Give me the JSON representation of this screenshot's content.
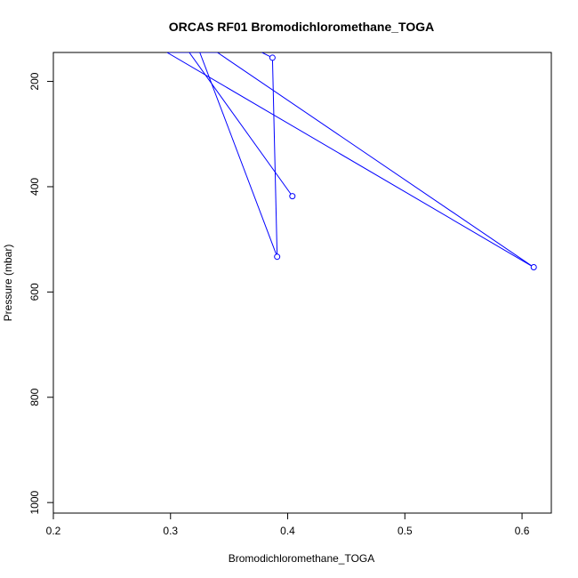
{
  "chart_data": {
    "type": "line",
    "title": "ORCAS RF01 Bromodichloromethane_TOGA",
    "xlabel": "Bromodichloromethane_TOGA",
    "ylabel": "Pressure (mbar)",
    "xlim": [
      0.2,
      0.625
    ],
    "ylim": [
      1020,
      145
    ],
    "y_reversed": true,
    "grid": false,
    "legend": "none",
    "xticks": [
      0.2,
      0.3,
      0.4,
      0.5,
      0.6
    ],
    "xtick_labels": [
      "0.2",
      "0.3",
      "0.4",
      "0.5",
      "0.6"
    ],
    "yticks": [
      200,
      400,
      600,
      800,
      1000
    ],
    "ytick_labels": [
      "200",
      "400",
      "600",
      "800",
      "1000"
    ],
    "series": [
      {
        "color": "#0000ff",
        "marker": "open-circle",
        "points": [
          {
            "x": 0.378,
            "y": 145,
            "marker": false
          },
          {
            "x": 0.387,
            "y": 155,
            "marker": true
          },
          {
            "x": 0.391,
            "y": 533,
            "marker": true
          },
          {
            "x": 0.325,
            "y": 145,
            "marker": false
          },
          {
            "x": 0.297,
            "y": 145,
            "marker": false
          },
          {
            "x": 0.61,
            "y": 553,
            "marker": true
          },
          {
            "x": 0.34,
            "y": 145,
            "marker": false
          },
          {
            "x": 0.316,
            "y": 145,
            "marker": false
          },
          {
            "x": 0.404,
            "y": 418,
            "marker": true
          }
        ]
      }
    ]
  }
}
